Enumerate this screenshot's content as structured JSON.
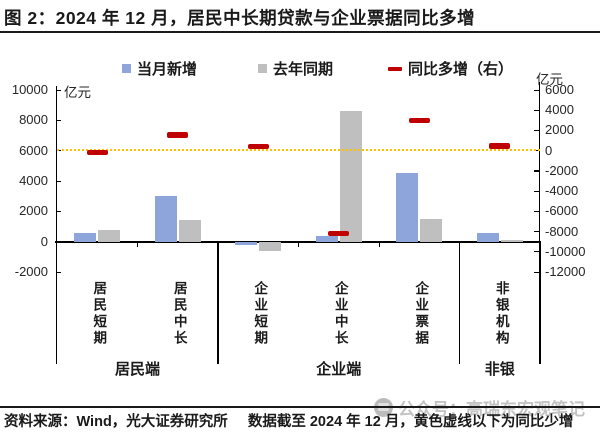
{
  "title": "图 2：2024 年 12 月，居民中长期贷款与企业票据同比多增",
  "legend": [
    {
      "label": "当月新增",
      "color": "#8EA5DB",
      "type": "square"
    },
    {
      "label": "去年同期",
      "color": "#BFBFBF",
      "type": "square"
    },
    {
      "label": "同比多增（右）",
      "color": "#C00000",
      "type": "dash"
    }
  ],
  "chart_data": {
    "type": "bar",
    "unit_left": "亿元",
    "unit_right": "亿元",
    "categories": [
      "居民短期",
      "居民中长",
      "企业短期",
      "企业中长",
      "企业票据",
      "非银机构"
    ],
    "groups": [
      {
        "label": "居民端",
        "span": [
          0,
          1
        ]
      },
      {
        "label": "企业端",
        "span": [
          2,
          4
        ]
      },
      {
        "label": "非银",
        "span": [
          5,
          5
        ]
      }
    ],
    "series": [
      {
        "name": "当月新增",
        "axis": "left",
        "type": "bar",
        "color": "#8EA5DB",
        "values": [
          590,
          3000,
          -230,
          400,
          4500,
          550
        ]
      },
      {
        "name": "去年同期",
        "axis": "left",
        "type": "bar",
        "color": "#BFBFBF",
        "values": [
          760,
          1460,
          -640,
          8600,
          1500,
          90
        ]
      },
      {
        "name": "同比多增（右）",
        "axis": "right",
        "type": "dash",
        "color": "#C00000",
        "values": [
          -170,
          1540,
          410,
          -8210,
          3000,
          460
        ]
      }
    ],
    "left_axis": {
      "unit": "亿元",
      "max": 10000,
      "min": -2000,
      "step": 2000
    },
    "right_axis": {
      "unit": "亿元",
      "max": 6000,
      "min": -12000,
      "step": 2000
    },
    "reference_line": {
      "axis": "right",
      "value": 0,
      "color": "#FFC000",
      "style": "dotted"
    },
    "grid": false,
    "legend_position": "top"
  },
  "footer": {
    "source": "资料来源：Wind，光大证券研究所",
    "note": "数据截至 2024 年 12 月，黄色虚线以下为同比少增"
  },
  "watermark": {
    "text": "公众号：高瑞东宏观笔记"
  },
  "colors": {
    "bar_blue": "#8EA5DB",
    "bar_gray": "#BFBFBF",
    "dash_red": "#C00000",
    "ref_yellow": "#FFC000",
    "axis_black": "#1a1a1a"
  }
}
